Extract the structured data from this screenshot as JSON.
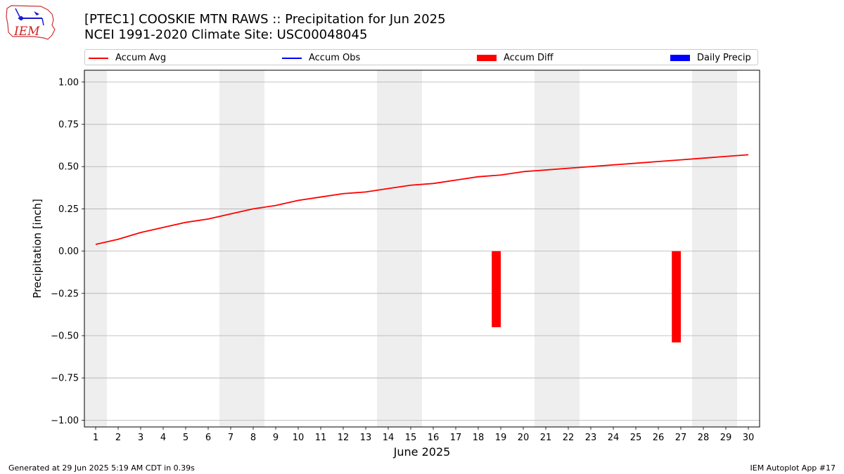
{
  "header": {
    "title_line1": "[PTEC1] COOSKIE MTN RAWS :: Precipitation for Jun 2025",
    "title_line2": "NCEI 1991-2020 Climate Site: USC00048045",
    "logo_text": "IEM"
  },
  "footer": {
    "left": "Generated at 29 Jun 2025 5:19 AM CDT in 0.39s",
    "right": "IEM Autoplot App #17"
  },
  "colors": {
    "accum_avg": "#ff0000",
    "accum_obs": "#0000ff",
    "accum_diff": "#ff0000",
    "daily_precip": "#0000ff",
    "weekend_shade": "#eeeeee",
    "grid": "#b0b0b0"
  },
  "chart_data": {
    "type": "line",
    "xlabel": "June 2025",
    "ylabel": "Precipitation [inch]",
    "xlim": [
      0.5,
      30.5
    ],
    "ylim": [
      -1.04,
      1.07
    ],
    "grid": "horizontal",
    "legend_placement": "top",
    "legend": [
      {
        "name": "Accum Avg",
        "kind": "line",
        "color": "#ff0000"
      },
      {
        "name": "Accum Obs",
        "kind": "line",
        "color": "#0000ff"
      },
      {
        "name": "Accum Diff",
        "kind": "patch",
        "color": "#ff0000"
      },
      {
        "name": "Daily Precip",
        "kind": "patch",
        "color": "#0000ff"
      }
    ],
    "x_ticks": [
      1,
      2,
      3,
      4,
      5,
      6,
      7,
      8,
      9,
      10,
      11,
      12,
      13,
      14,
      15,
      16,
      17,
      18,
      19,
      20,
      21,
      22,
      23,
      24,
      25,
      26,
      27,
      28,
      29,
      30
    ],
    "y_ticks": [
      {
        "value": 1.0,
        "label": "1.00"
      },
      {
        "value": 0.75,
        "label": "0.75"
      },
      {
        "value": 0.5,
        "label": "0.50"
      },
      {
        "value": 0.25,
        "label": "0.25"
      },
      {
        "value": 0.0,
        "label": "0.00"
      },
      {
        "value": -0.25,
        "label": "−0.25"
      },
      {
        "value": -0.5,
        "label": "−0.50"
      },
      {
        "value": -0.75,
        "label": "−0.75"
      },
      {
        "value": -1.0,
        "label": "−1.00"
      }
    ],
    "weekend_spans": [
      [
        0.5,
        1.5
      ],
      [
        6.5,
        8.5
      ],
      [
        13.5,
        15.5
      ],
      [
        20.5,
        22.5
      ],
      [
        27.5,
        29.5
      ]
    ],
    "series": [
      {
        "name": "Accum Avg",
        "type": "line",
        "color": "#ff0000",
        "x": [
          1,
          2,
          3,
          4,
          5,
          6,
          7,
          8,
          9,
          10,
          11,
          12,
          13,
          14,
          15,
          16,
          17,
          18,
          19,
          20,
          21,
          22,
          23,
          24,
          25,
          26,
          27,
          28,
          29,
          30
        ],
        "values": [
          0.04,
          0.07,
          0.11,
          0.14,
          0.17,
          0.19,
          0.22,
          0.25,
          0.27,
          0.3,
          0.32,
          0.34,
          0.35,
          0.37,
          0.39,
          0.4,
          0.42,
          0.44,
          0.45,
          0.47,
          0.48,
          0.49,
          0.5,
          0.51,
          0.52,
          0.53,
          0.54,
          0.55,
          0.56,
          0.57
        ]
      },
      {
        "name": "Accum Diff",
        "type": "bar",
        "color": "#ff0000",
        "x": [
          18.8,
          26.8
        ],
        "values": [
          -0.45,
          -0.54
        ]
      }
    ]
  }
}
